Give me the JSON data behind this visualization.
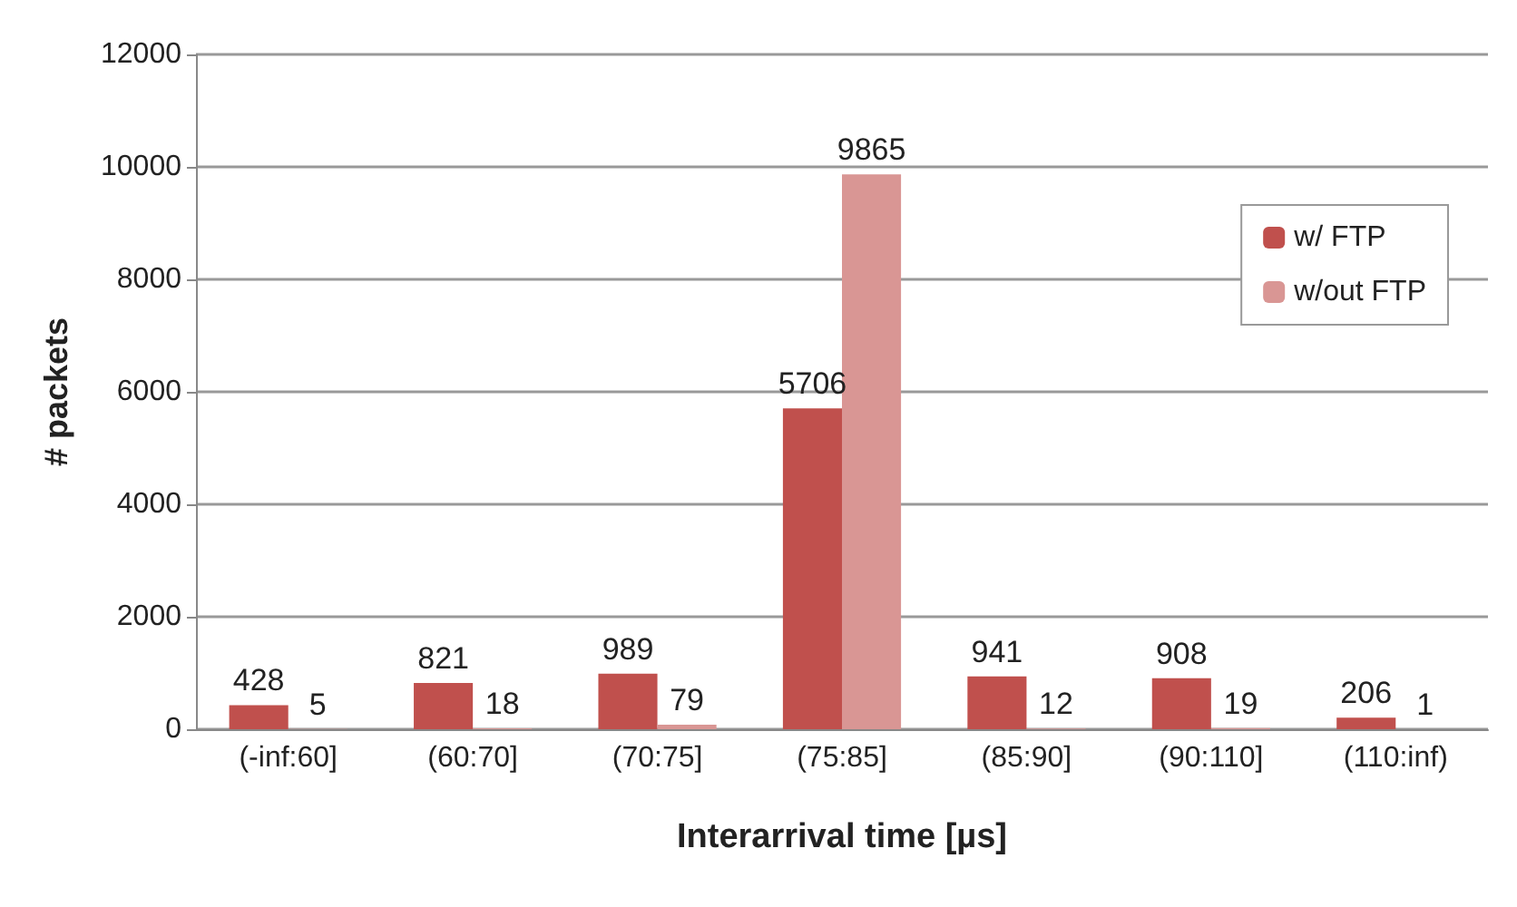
{
  "chart_data": {
    "type": "bar",
    "xlabel": "Interarrival time [µs]",
    "ylabel": "# packets",
    "categories": [
      "(-inf:60]",
      "(60:70]",
      "(70:75]",
      "(75:85]",
      "(85:90]",
      "(90:110]",
      "(110:inf)"
    ],
    "series": [
      {
        "name": "w/ FTP",
        "color": "#c0504d",
        "values": [
          428,
          821,
          989,
          5706,
          941,
          908,
          206
        ]
      },
      {
        "name": "w/out FTP",
        "color": "#d99694",
        "values": [
          5,
          18,
          79,
          9865,
          12,
          19,
          1
        ]
      }
    ],
    "ylim": [
      0,
      12000
    ],
    "yticks": [
      0,
      2000,
      4000,
      6000,
      8000,
      10000,
      12000
    ],
    "grid": "y",
    "legend": "top right",
    "data_labels": true
  }
}
